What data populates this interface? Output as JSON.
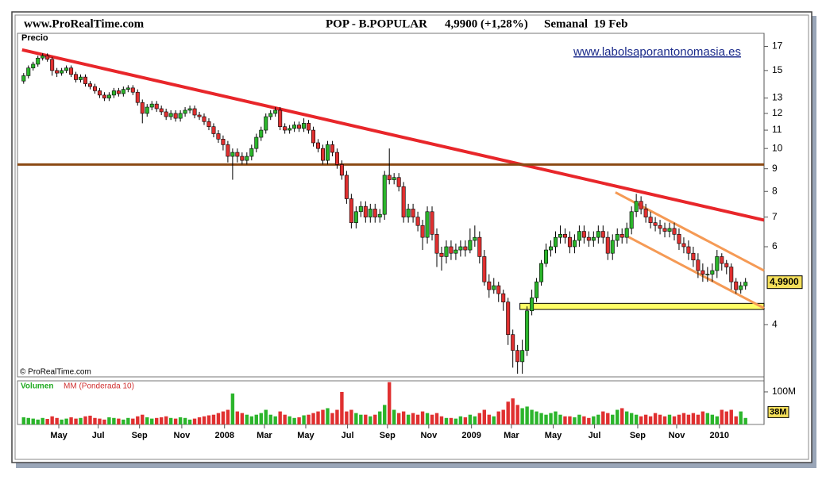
{
  "chart_data": {
    "type": "candlestick",
    "site": "www.ProRealTime.com",
    "title": "POP - B.POPULAR",
    "quote": "4,9900 (+1,28%)",
    "period": "Semanal  19 Feb",
    "y_label": "Precio",
    "watermark": "www.labolsaporantonomasia.es",
    "copyright": "© ProRealTime.com",
    "up_color": "#2bb52b",
    "down_color": "#e03030",
    "log_y": true,
    "ylim": [
      3.05,
      18.2
    ],
    "yticks": [
      4,
      6,
      7,
      8,
      9,
      10,
      11,
      12,
      13,
      15,
      17
    ],
    "xlim": [
      -1.3,
      155.9
    ],
    "xticks": [
      {
        "value": 7.4,
        "label": "May"
      },
      {
        "value": 15.7,
        "label": "Jul"
      },
      {
        "value": 24.4,
        "label": "Sep"
      },
      {
        "value": 33.3,
        "label": "Nov"
      },
      {
        "value": 42.3,
        "label": "2008"
      },
      {
        "value": 50.7,
        "label": "Mar"
      },
      {
        "value": 59.4,
        "label": "May"
      },
      {
        "value": 68.2,
        "label": "Jul"
      },
      {
        "value": 76.6,
        "label": "Sep"
      },
      {
        "value": 85.3,
        "label": "Nov"
      },
      {
        "value": 94.3,
        "label": "2009"
      },
      {
        "value": 102.7,
        "label": "Mar"
      },
      {
        "value": 111.5,
        "label": "May"
      },
      {
        "value": 120.2,
        "label": "Jul"
      },
      {
        "value": 129.3,
        "label": "Sep"
      },
      {
        "value": 137.5,
        "label": "Nov"
      },
      {
        "value": 146.5,
        "label": "2010"
      }
    ],
    "open": [
      14.2,
      14.6,
      15.2,
      15.5,
      16.0,
      16.2,
      15.9,
      15.0,
      14.8,
      15.0,
      15.2,
      14.7,
      14.3,
      14.5,
      14.0,
      13.8,
      13.5,
      13.2,
      13.0,
      13.2,
      13.5,
      13.3,
      13.6,
      13.7,
      13.4,
      12.7,
      12.0,
      12.4,
      12.6,
      12.3,
      12.1,
      11.8,
      12.0,
      11.7,
      12.0,
      12.2,
      12.3,
      11.9,
      11.8,
      11.5,
      11.2,
      10.8,
      10.5,
      10.2,
      9.6,
      9.8,
      9.6,
      9.4,
      9.6,
      10.0,
      10.6,
      11.0,
      11.8,
      12.0,
      12.2,
      11.2,
      11.0,
      11.1,
      11.3,
      11.1,
      11.4,
      11.0,
      10.3,
      10.0,
      9.4,
      10.2,
      9.8,
      9.2,
      8.7,
      7.7,
      6.8,
      7.2,
      7.4,
      7.0,
      7.3,
      7.0,
      7.1,
      8.7,
      8.5,
      8.6,
      8.2,
      7.0,
      7.3,
      7.0,
      6.7,
      6.3,
      7.2,
      6.4,
      5.8,
      5.7,
      6.0,
      5.8,
      5.9,
      6.0,
      5.9,
      6.2,
      6.3,
      5.7,
      5.0,
      4.8,
      4.9,
      4.7,
      4.5,
      3.8,
      3.5,
      3.3,
      3.5,
      4.3,
      4.6,
      5.0,
      5.5,
      5.9,
      6.0,
      6.3,
      6.4,
      6.3,
      6.0,
      6.2,
      6.5,
      6.3,
      6.2,
      6.3,
      6.5,
      6.3,
      5.8,
      6.2,
      6.4,
      6.3,
      6.6,
      7.2,
      7.6,
      7.3,
      7.0,
      6.8,
      6.7,
      6.6,
      6.5,
      6.6,
      6.4,
      6.1,
      6.0,
      5.8,
      5.6,
      5.3,
      5.2,
      5.2,
      5.3,
      5.7,
      5.5,
      5.4,
      5.0,
      4.8,
      4.9
    ],
    "high": [
      14.8,
      15.4,
      15.7,
      16.2,
      16.4,
      16.4,
      16.1,
      15.2,
      15.2,
      15.4,
      15.4,
      14.9,
      14.7,
      14.7,
      14.2,
      14.0,
      13.7,
      13.4,
      13.4,
      13.7,
      13.7,
      13.8,
      13.9,
      13.9,
      13.6,
      12.9,
      12.6,
      12.8,
      12.8,
      12.5,
      12.3,
      12.2,
      12.2,
      12.2,
      12.4,
      12.5,
      12.5,
      12.1,
      12.0,
      11.7,
      11.4,
      11.0,
      10.7,
      10.4,
      10.0,
      10.0,
      9.8,
      9.8,
      10.2,
      10.8,
      11.2,
      12.0,
      12.2,
      12.4,
      12.4,
      11.4,
      11.3,
      11.5,
      11.5,
      11.7,
      11.6,
      11.2,
      10.5,
      10.2,
      10.4,
      10.4,
      10.0,
      9.4,
      8.9,
      7.9,
      7.4,
      7.6,
      7.6,
      7.5,
      7.5,
      7.3,
      8.9,
      10.0,
      8.8,
      8.8,
      8.4,
      7.5,
      7.5,
      7.2,
      6.9,
      7.4,
      7.4,
      6.6,
      6.0,
      6.2,
      6.2,
      6.1,
      6.2,
      6.2,
      6.6,
      6.7,
      6.5,
      5.9,
      5.2,
      5.1,
      5.0,
      4.8,
      4.6,
      3.9,
      3.6,
      3.7,
      4.4,
      4.8,
      5.1,
      5.6,
      6.1,
      6.2,
      6.5,
      6.7,
      6.6,
      6.5,
      6.4,
      6.7,
      6.7,
      6.5,
      6.5,
      6.7,
      6.7,
      6.5,
      6.4,
      6.6,
      6.6,
      6.8,
      7.4,
      7.9,
      7.8,
      7.5,
      7.2,
      7.0,
      6.9,
      6.8,
      6.8,
      6.8,
      6.6,
      6.3,
      6.2,
      6.0,
      5.8,
      5.5,
      5.4,
      5.5,
      5.9,
      5.8,
      5.6,
      5.5,
      5.1,
      5.0,
      5.1
    ],
    "low": [
      14.0,
      14.4,
      15.0,
      15.3,
      15.8,
      15.7,
      14.6,
      14.5,
      14.6,
      14.8,
      14.5,
      14.1,
      14.1,
      13.8,
      13.6,
      13.3,
      13.0,
      12.8,
      12.8,
      13.0,
      13.1,
      13.1,
      13.4,
      13.2,
      12.5,
      11.4,
      11.8,
      12.2,
      12.1,
      11.9,
      11.6,
      11.6,
      11.5,
      11.5,
      11.8,
      12.0,
      11.7,
      11.6,
      11.3,
      11.0,
      10.6,
      10.3,
      9.9,
      9.3,
      8.5,
      9.3,
      9.2,
      9.2,
      9.4,
      9.8,
      10.4,
      10.8,
      11.6,
      11.8,
      11.0,
      10.8,
      10.8,
      10.9,
      10.9,
      10.9,
      10.8,
      10.1,
      9.8,
      9.2,
      9.2,
      9.6,
      9.0,
      8.5,
      7.5,
      6.6,
      6.6,
      7.0,
      6.8,
      6.8,
      6.8,
      6.8,
      6.9,
      8.3,
      8.3,
      8.0,
      6.8,
      6.8,
      6.8,
      6.5,
      5.9,
      6.1,
      6.2,
      5.4,
      5.3,
      5.5,
      5.6,
      5.6,
      5.7,
      5.7,
      5.8,
      6.0,
      5.5,
      4.9,
      4.6,
      4.7,
      4.5,
      4.3,
      3.6,
      3.2,
      3.1,
      3.1,
      3.4,
      4.2,
      4.5,
      4.9,
      5.4,
      5.7,
      5.8,
      6.1,
      6.1,
      5.8,
      5.8,
      6.0,
      6.1,
      6.0,
      6.0,
      6.1,
      6.1,
      5.6,
      5.6,
      6.0,
      6.1,
      6.1,
      6.4,
      7.0,
      7.1,
      6.8,
      6.6,
      6.5,
      6.4,
      6.3,
      6.3,
      6.2,
      5.9,
      5.8,
      5.6,
      5.4,
      5.1,
      5.0,
      5.0,
      5.0,
      5.1,
      5.3,
      5.2,
      4.8,
      4.7,
      4.7,
      4.8
    ],
    "close": [
      14.6,
      15.2,
      15.5,
      16.0,
      16.2,
      15.9,
      15.0,
      14.8,
      15.0,
      15.2,
      14.7,
      14.3,
      14.5,
      14.0,
      13.8,
      13.5,
      13.2,
      13.0,
      13.2,
      13.5,
      13.3,
      13.6,
      13.7,
      13.4,
      12.7,
      12.0,
      12.4,
      12.6,
      12.3,
      12.1,
      11.8,
      12.0,
      11.7,
      12.0,
      12.2,
      12.3,
      11.9,
      11.8,
      11.5,
      11.2,
      10.8,
      10.5,
      10.2,
      9.6,
      9.8,
      9.6,
      9.4,
      9.6,
      10.0,
      10.6,
      11.0,
      11.8,
      12.0,
      12.2,
      11.2,
      11.0,
      11.1,
      11.3,
      11.1,
      11.4,
      11.0,
      10.3,
      10.0,
      9.4,
      10.2,
      9.8,
      9.2,
      8.7,
      7.7,
      6.8,
      7.2,
      7.4,
      7.0,
      7.3,
      7.0,
      7.1,
      8.7,
      8.5,
      8.6,
      8.2,
      7.0,
      7.3,
      7.0,
      6.7,
      6.3,
      7.2,
      6.4,
      5.8,
      5.7,
      6.0,
      5.8,
      5.9,
      6.0,
      5.9,
      6.2,
      6.3,
      5.7,
      5.0,
      4.8,
      4.9,
      4.7,
      4.5,
      3.8,
      3.5,
      3.3,
      3.5,
      4.3,
      4.6,
      5.0,
      5.5,
      5.9,
      6.0,
      6.3,
      6.4,
      6.3,
      6.0,
      6.2,
      6.5,
      6.3,
      6.2,
      6.3,
      6.5,
      6.3,
      5.8,
      6.2,
      6.4,
      6.3,
      6.6,
      7.2,
      7.6,
      7.3,
      7.0,
      6.8,
      6.7,
      6.6,
      6.5,
      6.6,
      6.4,
      6.1,
      6.0,
      5.8,
      5.6,
      5.3,
      5.2,
      5.2,
      5.3,
      5.7,
      5.5,
      5.4,
      5.0,
      4.8,
      4.9,
      4.99
    ],
    "last_price": {
      "value": 4.99,
      "label": "4,9900"
    },
    "trendlines": [
      {
        "color": "#e8262a",
        "from": [
          -0.33,
          16.7
        ],
        "to": [
          155.9,
          6.89
        ]
      },
      {
        "color": "#8b4a14",
        "from": [
          -1.3,
          9.2
        ],
        "to": [
          155.9,
          9.2
        ]
      },
      {
        "color": "#f59a55",
        "from": [
          124.6,
          7.96
        ],
        "to": [
          155.9,
          5.3
        ]
      },
      {
        "color": "#f59a55",
        "from": [
          127.4,
          6.31
        ],
        "to": [
          155.9,
          4.36
        ]
      }
    ],
    "support_band": {
      "from": 104.5,
      "prices": [
        4.33,
        4.47
      ],
      "color": "#ffff66"
    },
    "volume": {
      "name": "Volumen",
      "ma_name": "MM (Ponderada 10)",
      "ylim": [
        0,
        134
      ],
      "yticks": [
        {
          "value": 100,
          "label": "100M"
        }
      ],
      "last_label": {
        "value": 38,
        "label": "38M"
      },
      "values": [
        22,
        20,
        18,
        15,
        20,
        17,
        25,
        20,
        15,
        18,
        22,
        18,
        20,
        25,
        27,
        20,
        18,
        15,
        22,
        20,
        18,
        15,
        20,
        18,
        25,
        30,
        22,
        18,
        20,
        22,
        25,
        20,
        18,
        22,
        20,
        15,
        18,
        22,
        25,
        28,
        30,
        35,
        40,
        45,
        95,
        40,
        35,
        30,
        25,
        30,
        35,
        45,
        30,
        25,
        40,
        30,
        25,
        20,
        22,
        28,
        30,
        35,
        40,
        45,
        50,
        35,
        45,
        100,
        40,
        45,
        35,
        30,
        30,
        25,
        30,
        40,
        60,
        130,
        45,
        35,
        40,
        30,
        35,
        30,
        40,
        35,
        30,
        35,
        25,
        20,
        20,
        18,
        25,
        22,
        30,
        25,
        35,
        45,
        30,
        25,
        40,
        45,
        70,
        80,
        60,
        50,
        55,
        45,
        40,
        35,
        30,
        35,
        40,
        30,
        25,
        25,
        22,
        30,
        25,
        20,
        25,
        30,
        40,
        35,
        30,
        45,
        50,
        40,
        35,
        30,
        25,
        30,
        25,
        35,
        30,
        25,
        30,
        25,
        30,
        35,
        30,
        35,
        30,
        40,
        35,
        30,
        25,
        45,
        40,
        45,
        25,
        40,
        20
      ]
    }
  }
}
